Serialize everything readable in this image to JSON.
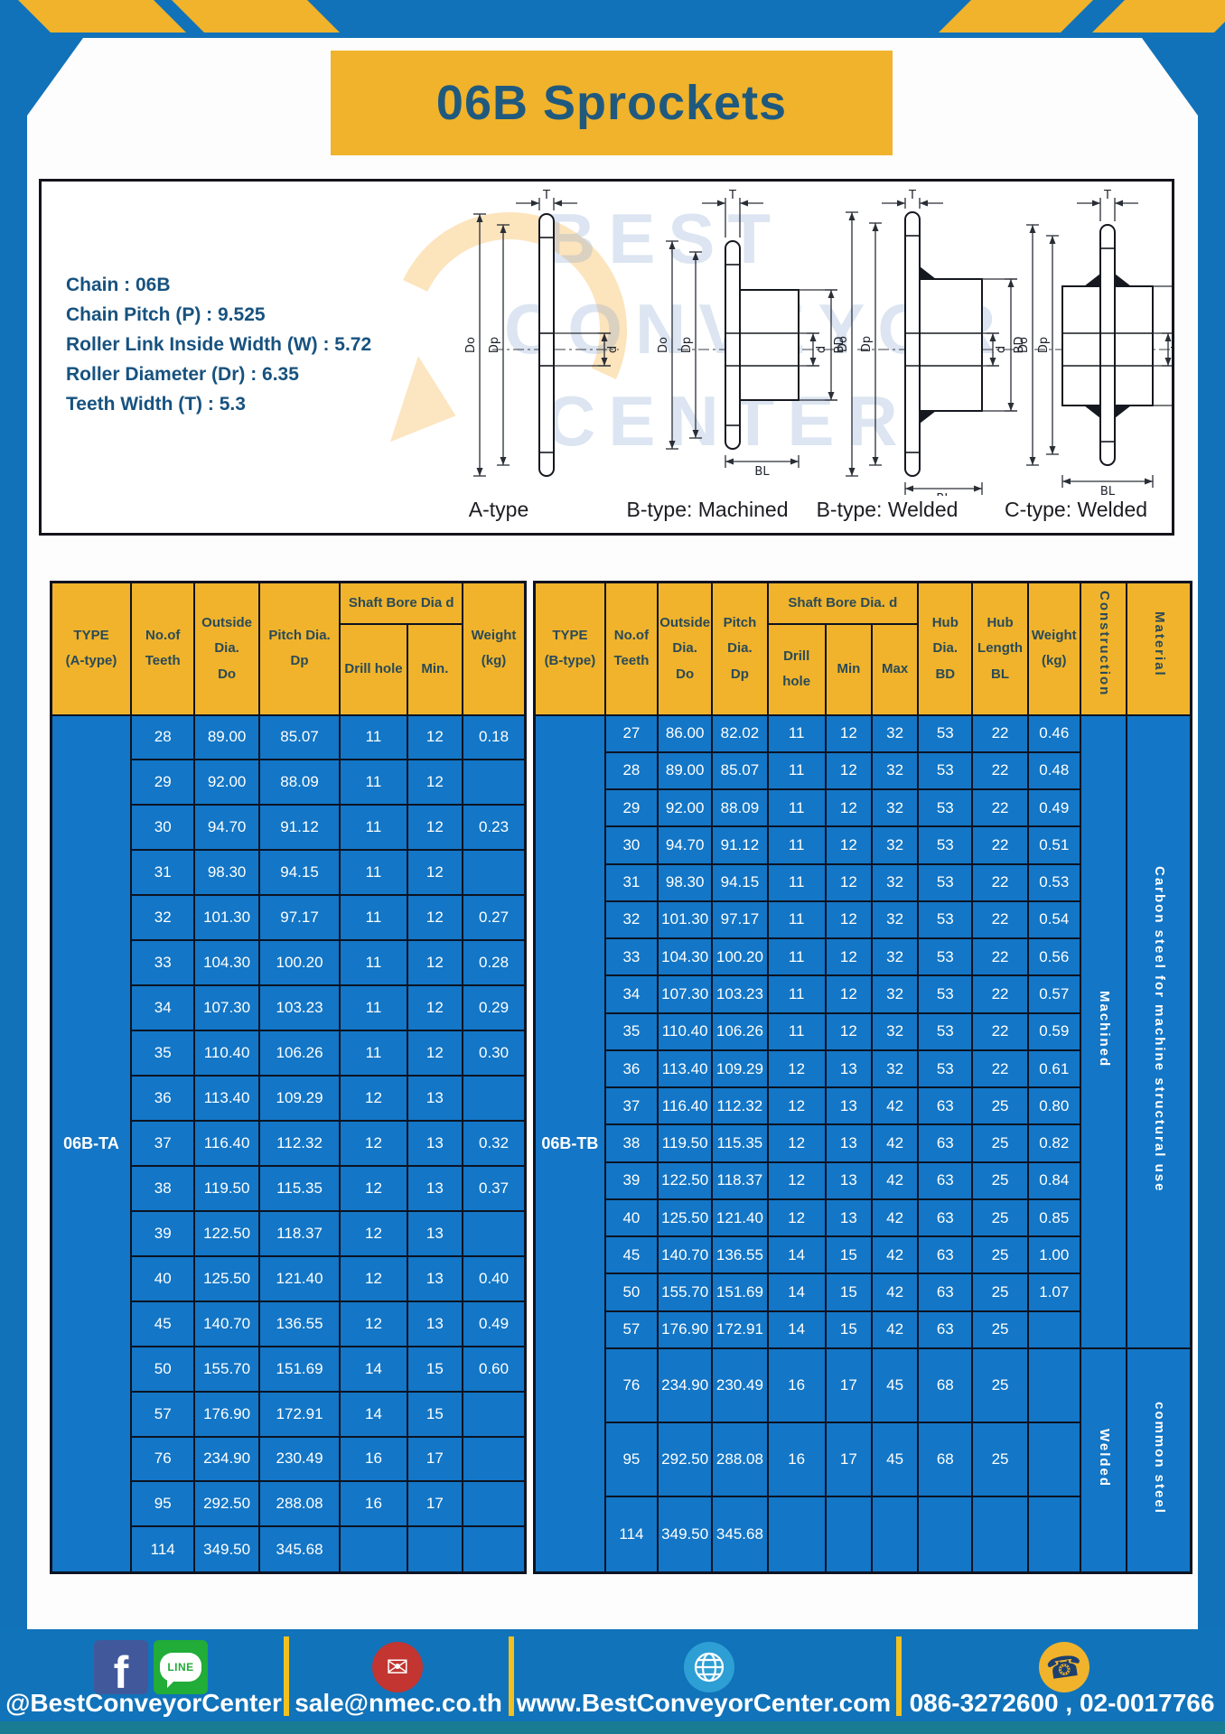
{
  "page": {
    "title": "06B Sprockets"
  },
  "colors": {
    "frame_blue": "#1172b9",
    "cell_blue": "#1376c6",
    "accent_yellow": "#f0b32b",
    "teal_strip": "#1a7c92",
    "title_text": "#20597e"
  },
  "specs": {
    "lines": [
      "Chain : 06B",
      "Chain Pitch (P) : 9.525",
      "Roller Link Inside Width (W) : 5.72",
      "Roller Diameter (Dr) : 6.35",
      "Teeth Width (T) : 5.3"
    ]
  },
  "watermark": {
    "lines": [
      "BEST",
      "CONVEYOR",
      "CENTER"
    ]
  },
  "diagrams": {
    "dims": {
      "T": "T",
      "Do": "Do",
      "Dp": "Dp",
      "d": "d",
      "BD": "BD",
      "BL": "BL"
    },
    "items": [
      {
        "label": "A-type",
        "type": "plain"
      },
      {
        "label": "B-type: Machined",
        "type": "mach"
      },
      {
        "label": "B-type: Welded",
        "type": "weld"
      },
      {
        "label": "C-type: Welded",
        "type": "weldc"
      }
    ]
  },
  "table_a": {
    "type_label": "06B-TA",
    "headers": {
      "type": "TYPE\n(A-type)",
      "teeth": "No.of\nTeeth",
      "outside": "Outside\nDia.\nDo",
      "pitch": "Pitch Dia.\nDp",
      "shaft": "Shaft Bore Dia d",
      "drill": "Drill hole",
      "min": "Min.",
      "weight": "Weight\n(kg)"
    },
    "rows": [
      [
        "28",
        "89.00",
        "85.07",
        "11",
        "12",
        "0.18"
      ],
      [
        "29",
        "92.00",
        "88.09",
        "11",
        "12",
        ""
      ],
      [
        "30",
        "94.70",
        "91.12",
        "11",
        "12",
        "0.23"
      ],
      [
        "31",
        "98.30",
        "94.15",
        "11",
        "12",
        ""
      ],
      [
        "32",
        "101.30",
        "97.17",
        "11",
        "12",
        "0.27"
      ],
      [
        "33",
        "104.30",
        "100.20",
        "11",
        "12",
        "0.28"
      ],
      [
        "34",
        "107.30",
        "103.23",
        "11",
        "12",
        "0.29"
      ],
      [
        "35",
        "110.40",
        "106.26",
        "11",
        "12",
        "0.30"
      ],
      [
        "36",
        "113.40",
        "109.29",
        "12",
        "13",
        ""
      ],
      [
        "37",
        "116.40",
        "112.32",
        "12",
        "13",
        "0.32"
      ],
      [
        "38",
        "119.50",
        "115.35",
        "12",
        "13",
        "0.37"
      ],
      [
        "39",
        "122.50",
        "118.37",
        "12",
        "13",
        ""
      ],
      [
        "40",
        "125.50",
        "121.40",
        "12",
        "13",
        "0.40"
      ],
      [
        "45",
        "140.70",
        "136.55",
        "12",
        "13",
        "0.49"
      ],
      [
        "50",
        "155.70",
        "151.69",
        "14",
        "15",
        "0.60"
      ],
      [
        "57",
        "176.90",
        "172.91",
        "14",
        "15",
        ""
      ],
      [
        "76",
        "234.90",
        "230.49",
        "16",
        "17",
        ""
      ],
      [
        "95",
        "292.50",
        "288.08",
        "16",
        "17",
        ""
      ],
      [
        "114",
        "349.50",
        "345.68",
        "",
        "",
        ""
      ]
    ]
  },
  "table_b": {
    "type_label": "06B-TB",
    "headers": {
      "type": "TYPE\n(B-type)",
      "teeth": "No.of\nTeeth",
      "outside": "Outside\nDia.\nDo",
      "pitch": "Pitch\nDia.\nDp",
      "shaft": "Shaft Bore Dia. d",
      "drill": "Drill hole",
      "min": "Min",
      "max": "Max",
      "hub_dia": "Hub\nDia.\nBD",
      "hub_len": "Hub\nLength\nBL",
      "weight": "Weight\n(kg)",
      "construction": "Construction",
      "material": "Material"
    },
    "rows": [
      [
        "27",
        "86.00",
        "82.02",
        "11",
        "12",
        "32",
        "53",
        "22",
        "0.46"
      ],
      [
        "28",
        "89.00",
        "85.07",
        "11",
        "12",
        "32",
        "53",
        "22",
        "0.48"
      ],
      [
        "29",
        "92.00",
        "88.09",
        "11",
        "12",
        "32",
        "53",
        "22",
        "0.49"
      ],
      [
        "30",
        "94.70",
        "91.12",
        "11",
        "12",
        "32",
        "53",
        "22",
        "0.51"
      ],
      [
        "31",
        "98.30",
        "94.15",
        "11",
        "12",
        "32",
        "53",
        "22",
        "0.53"
      ],
      [
        "32",
        "101.30",
        "97.17",
        "11",
        "12",
        "32",
        "53",
        "22",
        "0.54"
      ],
      [
        "33",
        "104.30",
        "100.20",
        "11",
        "12",
        "32",
        "53",
        "22",
        "0.56"
      ],
      [
        "34",
        "107.30",
        "103.23",
        "11",
        "12",
        "32",
        "53",
        "22",
        "0.57"
      ],
      [
        "35",
        "110.40",
        "106.26",
        "11",
        "12",
        "32",
        "53",
        "22",
        "0.59"
      ],
      [
        "36",
        "113.40",
        "109.29",
        "12",
        "13",
        "32",
        "53",
        "22",
        "0.61"
      ],
      [
        "37",
        "116.40",
        "112.32",
        "12",
        "13",
        "42",
        "63",
        "25",
        "0.80"
      ],
      [
        "38",
        "119.50",
        "115.35",
        "12",
        "13",
        "42",
        "63",
        "25",
        "0.82"
      ],
      [
        "39",
        "122.50",
        "118.37",
        "12",
        "13",
        "42",
        "63",
        "25",
        "0.84"
      ],
      [
        "40",
        "125.50",
        "121.40",
        "12",
        "13",
        "42",
        "63",
        "25",
        "0.85"
      ],
      [
        "45",
        "140.70",
        "136.55",
        "14",
        "15",
        "42",
        "63",
        "25",
        "1.00"
      ],
      [
        "50",
        "155.70",
        "151.69",
        "14",
        "15",
        "42",
        "63",
        "25",
        "1.07"
      ],
      [
        "57",
        "176.90",
        "172.91",
        "14",
        "15",
        "42",
        "63",
        "25",
        ""
      ],
      [
        "76",
        "234.90",
        "230.49",
        "16",
        "17",
        "45",
        "68",
        "25",
        ""
      ],
      [
        "95",
        "292.50",
        "288.08",
        "16",
        "17",
        "45",
        "68",
        "25",
        ""
      ],
      [
        "114",
        "349.50",
        "345.68",
        "",
        "",
        "",
        "",
        "",
        ""
      ]
    ],
    "sections": [
      {
        "construction": "Machined",
        "material": "Carbon steel for machine structural use",
        "rows": 17
      },
      {
        "construction": "Welded",
        "material": "common steel",
        "rows": 3
      }
    ]
  },
  "footer": {
    "social_handle": "@BestConveyorCenter",
    "email": "sale@nmec.co.th",
    "website": "www.BestConveyorCenter.com",
    "phones": "086-3272600 , 02-0017766",
    "facebook_letter": "f",
    "line_label": "LINE",
    "icons": {
      "mail": "✉",
      "phone": "☎"
    }
  }
}
